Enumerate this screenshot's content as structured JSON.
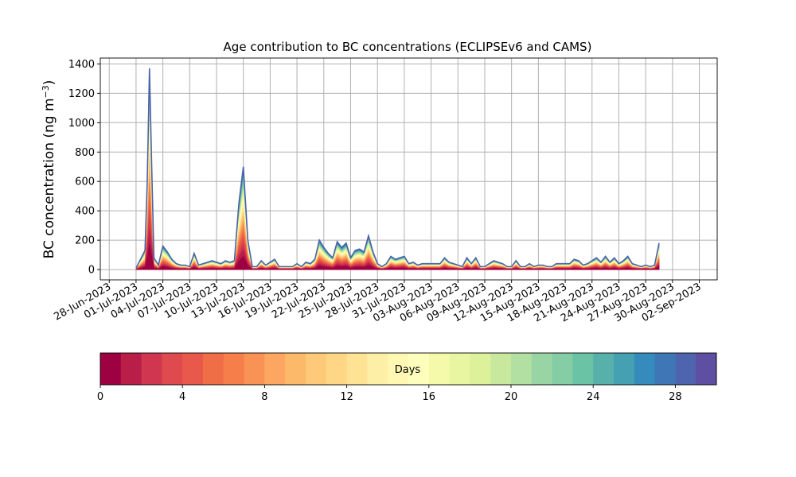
{
  "chart_data": {
    "type": "area",
    "title": "Age contribution to BC concentrations (ECLIPSEv6 and CAMS)",
    "ylabel_main": "BC concentration (ng m",
    "ylabel_sup": "−3",
    "ylabel_close": ")",
    "xlabel": "",
    "ylim": [
      -70,
      1440
    ],
    "yticks": [
      0,
      200,
      400,
      600,
      800,
      1000,
      1200,
      1400
    ],
    "x_range_start": "2023-06-27",
    "x_range_end": "2023-09-04",
    "xticks": [
      {
        "date": "2023-06-28",
        "label": "28-Jun-2023"
      },
      {
        "date": "2023-07-01",
        "label": "01-Jul-2023"
      },
      {
        "date": "2023-07-04",
        "label": "04-Jul-2023"
      },
      {
        "date": "2023-07-07",
        "label": "07-Jul-2023"
      },
      {
        "date": "2023-07-10",
        "label": "10-Jul-2023"
      },
      {
        "date": "2023-07-13",
        "label": "13-Jul-2023"
      },
      {
        "date": "2023-07-16",
        "label": "16-Jul-2023"
      },
      {
        "date": "2023-07-19",
        "label": "19-Jul-2023"
      },
      {
        "date": "2023-07-22",
        "label": "22-Jul-2023"
      },
      {
        "date": "2023-07-25",
        "label": "25-Jul-2023"
      },
      {
        "date": "2023-07-28",
        "label": "28-Jul-2023"
      },
      {
        "date": "2023-07-31",
        "label": "31-Jul-2023"
      },
      {
        "date": "2023-08-03",
        "label": "03-Aug-2023"
      },
      {
        "date": "2023-08-06",
        "label": "06-Aug-2023"
      },
      {
        "date": "2023-08-09",
        "label": "09-Aug-2023"
      },
      {
        "date": "2023-08-12",
        "label": "12-Aug-2023"
      },
      {
        "date": "2023-08-15",
        "label": "15-Aug-2023"
      },
      {
        "date": "2023-08-18",
        "label": "18-Aug-2023"
      },
      {
        "date": "2023-08-21",
        "label": "21-Aug-2023"
      },
      {
        "date": "2023-08-24",
        "label": "24-Aug-2023"
      },
      {
        "date": "2023-08-27",
        "label": "27-Aug-2023"
      },
      {
        "date": "2023-08-30",
        "label": "30-Aug-2023"
      },
      {
        "date": "2023-09-02",
        "label": "02-Sep-2023"
      }
    ],
    "grid": true,
    "total_series": [
      {
        "date": "2023-07-01T00:00",
        "value": 10
      },
      {
        "date": "2023-07-01T12:00",
        "value": 70
      },
      {
        "date": "2023-07-02T00:00",
        "value": 130
      },
      {
        "date": "2023-07-02T06:00",
        "value": 600
      },
      {
        "date": "2023-07-02T12:00",
        "value": 1370
      },
      {
        "date": "2023-07-02T18:00",
        "value": 700
      },
      {
        "date": "2023-07-03T00:00",
        "value": 80
      },
      {
        "date": "2023-07-03T12:00",
        "value": 30
      },
      {
        "date": "2023-07-04T00:00",
        "value": 160
      },
      {
        "date": "2023-07-04T12:00",
        "value": 120
      },
      {
        "date": "2023-07-05T00:00",
        "value": 70
      },
      {
        "date": "2023-07-05T12:00",
        "value": 40
      },
      {
        "date": "2023-07-06T00:00",
        "value": 30
      },
      {
        "date": "2023-07-06T12:00",
        "value": 30
      },
      {
        "date": "2023-07-07T00:00",
        "value": 20
      },
      {
        "date": "2023-07-07T12:00",
        "value": 110
      },
      {
        "date": "2023-07-08T00:00",
        "value": 30
      },
      {
        "date": "2023-07-08T12:00",
        "value": 40
      },
      {
        "date": "2023-07-09T00:00",
        "value": 50
      },
      {
        "date": "2023-07-09T12:00",
        "value": 60
      },
      {
        "date": "2023-07-10T00:00",
        "value": 50
      },
      {
        "date": "2023-07-10T12:00",
        "value": 40
      },
      {
        "date": "2023-07-11T00:00",
        "value": 60
      },
      {
        "date": "2023-07-11T12:00",
        "value": 50
      },
      {
        "date": "2023-07-12T00:00",
        "value": 60
      },
      {
        "date": "2023-07-12T12:00",
        "value": 450
      },
      {
        "date": "2023-07-13T00:00",
        "value": 700
      },
      {
        "date": "2023-07-13T12:00",
        "value": 200
      },
      {
        "date": "2023-07-14T00:00",
        "value": 20
      },
      {
        "date": "2023-07-14T12:00",
        "value": 20
      },
      {
        "date": "2023-07-15T00:00",
        "value": 60
      },
      {
        "date": "2023-07-15T12:00",
        "value": 30
      },
      {
        "date": "2023-07-16T00:00",
        "value": 50
      },
      {
        "date": "2023-07-16T12:00",
        "value": 70
      },
      {
        "date": "2023-07-17T00:00",
        "value": 20
      },
      {
        "date": "2023-07-17T12:00",
        "value": 20
      },
      {
        "date": "2023-07-18T00:00",
        "value": 20
      },
      {
        "date": "2023-07-18T12:00",
        "value": 20
      },
      {
        "date": "2023-07-19T00:00",
        "value": 40
      },
      {
        "date": "2023-07-19T12:00",
        "value": 20
      },
      {
        "date": "2023-07-20T00:00",
        "value": 50
      },
      {
        "date": "2023-07-20T12:00",
        "value": 40
      },
      {
        "date": "2023-07-21T00:00",
        "value": 70
      },
      {
        "date": "2023-07-21T12:00",
        "value": 200
      },
      {
        "date": "2023-07-22T00:00",
        "value": 150
      },
      {
        "date": "2023-07-22T12:00",
        "value": 110
      },
      {
        "date": "2023-07-23T00:00",
        "value": 80
      },
      {
        "date": "2023-07-23T12:00",
        "value": 190
      },
      {
        "date": "2023-07-24T00:00",
        "value": 150
      },
      {
        "date": "2023-07-24T12:00",
        "value": 180
      },
      {
        "date": "2023-07-25T00:00",
        "value": 80
      },
      {
        "date": "2023-07-25T12:00",
        "value": 130
      },
      {
        "date": "2023-07-26T00:00",
        "value": 140
      },
      {
        "date": "2023-07-26T12:00",
        "value": 120
      },
      {
        "date": "2023-07-27T00:00",
        "value": 230
      },
      {
        "date": "2023-07-27T12:00",
        "value": 120
      },
      {
        "date": "2023-07-28T00:00",
        "value": 40
      },
      {
        "date": "2023-07-28T12:00",
        "value": 20
      },
      {
        "date": "2023-07-29T00:00",
        "value": 40
      },
      {
        "date": "2023-07-29T12:00",
        "value": 90
      },
      {
        "date": "2023-07-30T00:00",
        "value": 70
      },
      {
        "date": "2023-07-30T12:00",
        "value": 80
      },
      {
        "date": "2023-07-31T00:00",
        "value": 90
      },
      {
        "date": "2023-07-31T12:00",
        "value": 40
      },
      {
        "date": "2023-08-01T00:00",
        "value": 50
      },
      {
        "date": "2023-08-01T12:00",
        "value": 30
      },
      {
        "date": "2023-08-02T00:00",
        "value": 40
      },
      {
        "date": "2023-08-02T12:00",
        "value": 40
      },
      {
        "date": "2023-08-03T00:00",
        "value": 40
      },
      {
        "date": "2023-08-03T12:00",
        "value": 40
      },
      {
        "date": "2023-08-04T00:00",
        "value": 40
      },
      {
        "date": "2023-08-04T12:00",
        "value": 80
      },
      {
        "date": "2023-08-05T00:00",
        "value": 50
      },
      {
        "date": "2023-08-05T12:00",
        "value": 40
      },
      {
        "date": "2023-08-06T00:00",
        "value": 30
      },
      {
        "date": "2023-08-06T12:00",
        "value": 20
      },
      {
        "date": "2023-08-07T00:00",
        "value": 80
      },
      {
        "date": "2023-08-07T12:00",
        "value": 40
      },
      {
        "date": "2023-08-08T00:00",
        "value": 80
      },
      {
        "date": "2023-08-08T12:00",
        "value": 20
      },
      {
        "date": "2023-08-09T00:00",
        "value": 20
      },
      {
        "date": "2023-08-09T12:00",
        "value": 40
      },
      {
        "date": "2023-08-10T00:00",
        "value": 60
      },
      {
        "date": "2023-08-10T12:00",
        "value": 50
      },
      {
        "date": "2023-08-11T00:00",
        "value": 40
      },
      {
        "date": "2023-08-11T12:00",
        "value": 20
      },
      {
        "date": "2023-08-12T00:00",
        "value": 20
      },
      {
        "date": "2023-08-12T12:00",
        "value": 60
      },
      {
        "date": "2023-08-13T00:00",
        "value": 20
      },
      {
        "date": "2023-08-13T12:00",
        "value": 20
      },
      {
        "date": "2023-08-14T00:00",
        "value": 40
      },
      {
        "date": "2023-08-14T12:00",
        "value": 20
      },
      {
        "date": "2023-08-15T00:00",
        "value": 30
      },
      {
        "date": "2023-08-15T12:00",
        "value": 30
      },
      {
        "date": "2023-08-16T00:00",
        "value": 20
      },
      {
        "date": "2023-08-16T12:00",
        "value": 20
      },
      {
        "date": "2023-08-17T00:00",
        "value": 40
      },
      {
        "date": "2023-08-17T12:00",
        "value": 40
      },
      {
        "date": "2023-08-18T00:00",
        "value": 40
      },
      {
        "date": "2023-08-18T12:00",
        "value": 40
      },
      {
        "date": "2023-08-19T00:00",
        "value": 70
      },
      {
        "date": "2023-08-19T12:00",
        "value": 60
      },
      {
        "date": "2023-08-20T00:00",
        "value": 30
      },
      {
        "date": "2023-08-20T12:00",
        "value": 40
      },
      {
        "date": "2023-08-21T00:00",
        "value": 60
      },
      {
        "date": "2023-08-21T12:00",
        "value": 80
      },
      {
        "date": "2023-08-22T00:00",
        "value": 50
      },
      {
        "date": "2023-08-22T12:00",
        "value": 90
      },
      {
        "date": "2023-08-23T00:00",
        "value": 50
      },
      {
        "date": "2023-08-23T12:00",
        "value": 80
      },
      {
        "date": "2023-08-24T00:00",
        "value": 40
      },
      {
        "date": "2023-08-24T12:00",
        "value": 60
      },
      {
        "date": "2023-08-25T00:00",
        "value": 90
      },
      {
        "date": "2023-08-25T12:00",
        "value": 40
      },
      {
        "date": "2023-08-26T00:00",
        "value": 30
      },
      {
        "date": "2023-08-26T12:00",
        "value": 20
      },
      {
        "date": "2023-08-27T00:00",
        "value": 30
      },
      {
        "date": "2023-08-27T12:00",
        "value": 20
      },
      {
        "date": "2023-08-28T00:00",
        "value": 30
      },
      {
        "date": "2023-08-28T12:00",
        "value": 180
      }
    ],
    "colorbar": {
      "label": "Days",
      "vmin": 0,
      "vmax": 30,
      "ticks": [
        0,
        4,
        8,
        12,
        16,
        20,
        24,
        28
      ],
      "colors": [
        "#9e0142",
        "#b81e48",
        "#d0364f",
        "#de4a4d",
        "#e9594b",
        "#ef6e46",
        "#f67e4b",
        "#f99355",
        "#fca662",
        "#fdb96a",
        "#fec979",
        "#fed685",
        "#fee395",
        "#feefa7",
        "#fff7b2",
        "#fdfebc",
        "#f4faaa",
        "#e8f6a1",
        "#dcf19a",
        "#c8e89e",
        "#b2e0a2",
        "#99d5a4",
        "#84cda5",
        "#6bc3a5",
        "#57b1aa",
        "#45a0b1",
        "#358bbc",
        "#3f77b6",
        "#4e64ae",
        "#5e4fa2"
      ]
    }
  }
}
